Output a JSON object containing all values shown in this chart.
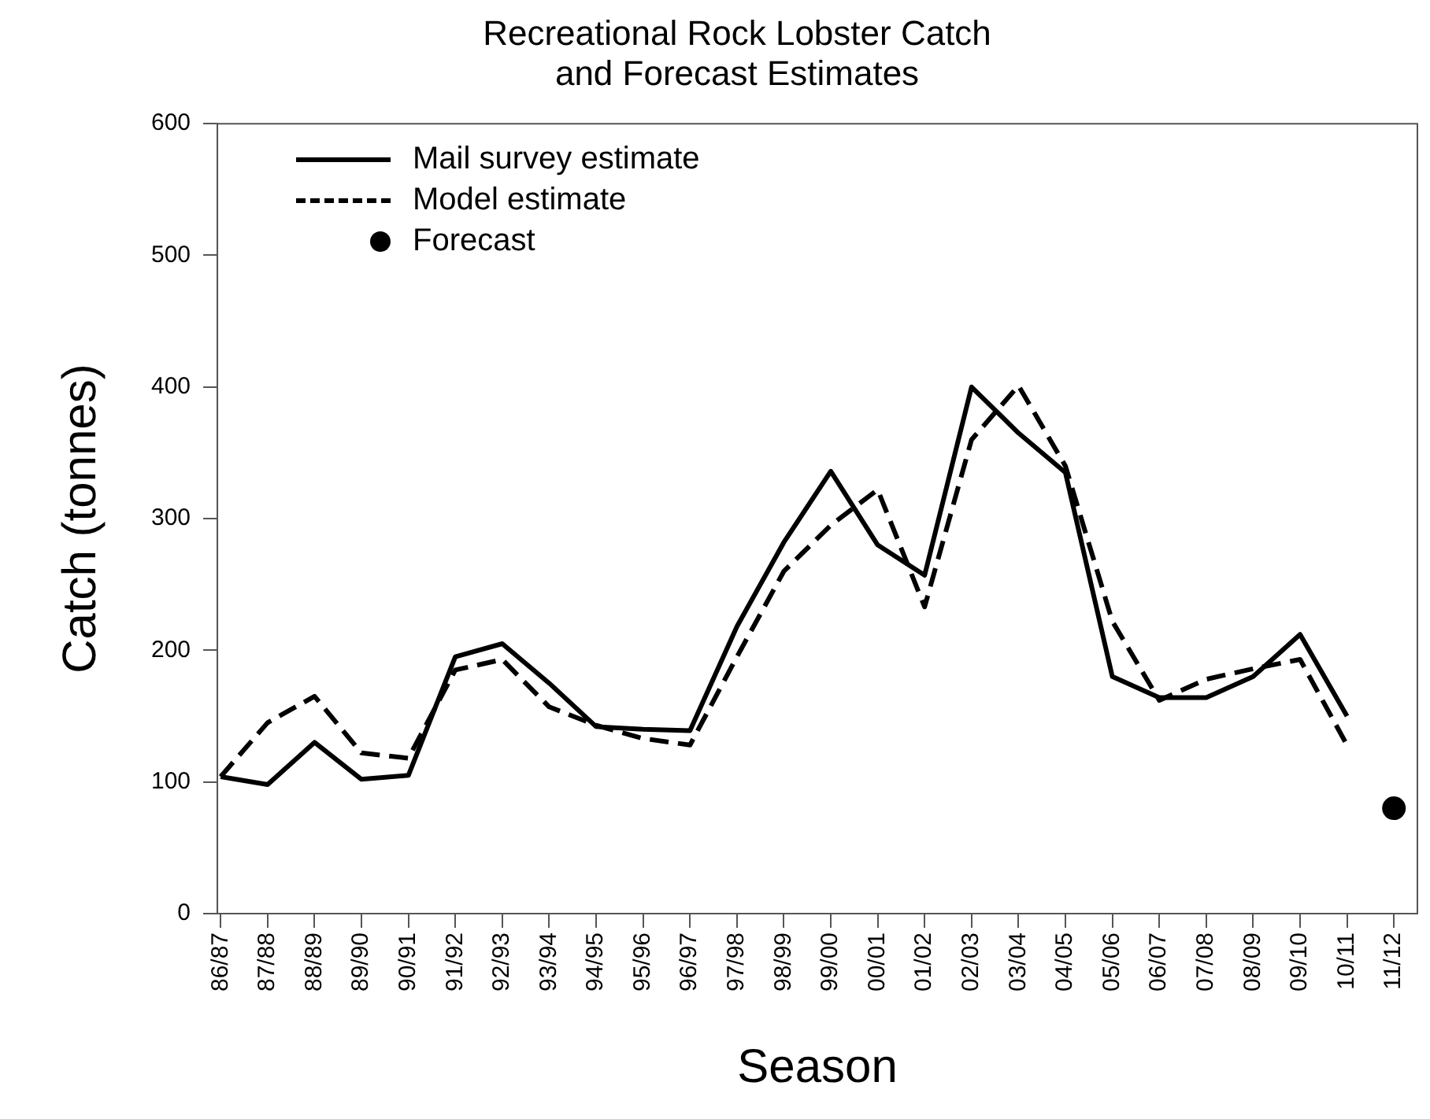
{
  "chart_data": {
    "type": "line",
    "title": "Recreational Rock Lobster Catch\nand Forecast Estimates",
    "xlabel": "Season",
    "ylabel": "Catch (tonnes)",
    "categories": [
      "86/87",
      "87/88",
      "88/89",
      "89/90",
      "90/91",
      "91/92",
      "92/93",
      "93/94",
      "94/95",
      "95/96",
      "96/97",
      "97/98",
      "98/99",
      "99/00",
      "00/01",
      "01/02",
      "02/03",
      "03/04",
      "04/05",
      "05/06",
      "06/07",
      "07/08",
      "08/09",
      "09/10",
      "10/11",
      "11/12"
    ],
    "series": [
      {
        "name": "Mail survey estimate",
        "type": "line",
        "color": "#000000",
        "line_style": "solid",
        "values": [
          104,
          98,
          130,
          102,
          105,
          195,
          205,
          175,
          142,
          140,
          139,
          218,
          282,
          336,
          280,
          257,
          400,
          365,
          335,
          180,
          164,
          164,
          180,
          212,
          150,
          null
        ]
      },
      {
        "name": "Model estimate",
        "type": "line",
        "color": "#000000",
        "line_style": "dashed",
        "values": [
          104,
          145,
          165,
          122,
          118,
          185,
          193,
          157,
          143,
          133,
          128,
          195,
          260,
          295,
          322,
          233,
          360,
          401,
          340,
          222,
          162,
          178,
          186,
          193,
          128,
          null
        ]
      },
      {
        "name": "Forecast",
        "type": "scatter",
        "color": "#000000",
        "marker": "circle",
        "values": [
          null,
          null,
          null,
          null,
          null,
          null,
          null,
          null,
          null,
          null,
          null,
          null,
          null,
          null,
          null,
          null,
          null,
          null,
          null,
          null,
          null,
          null,
          null,
          null,
          null,
          80
        ]
      }
    ],
    "ylim": [
      0,
      600
    ],
    "yticks": [
      0,
      100,
      200,
      300,
      400,
      500,
      600
    ],
    "grid": false,
    "legend": "top left"
  }
}
